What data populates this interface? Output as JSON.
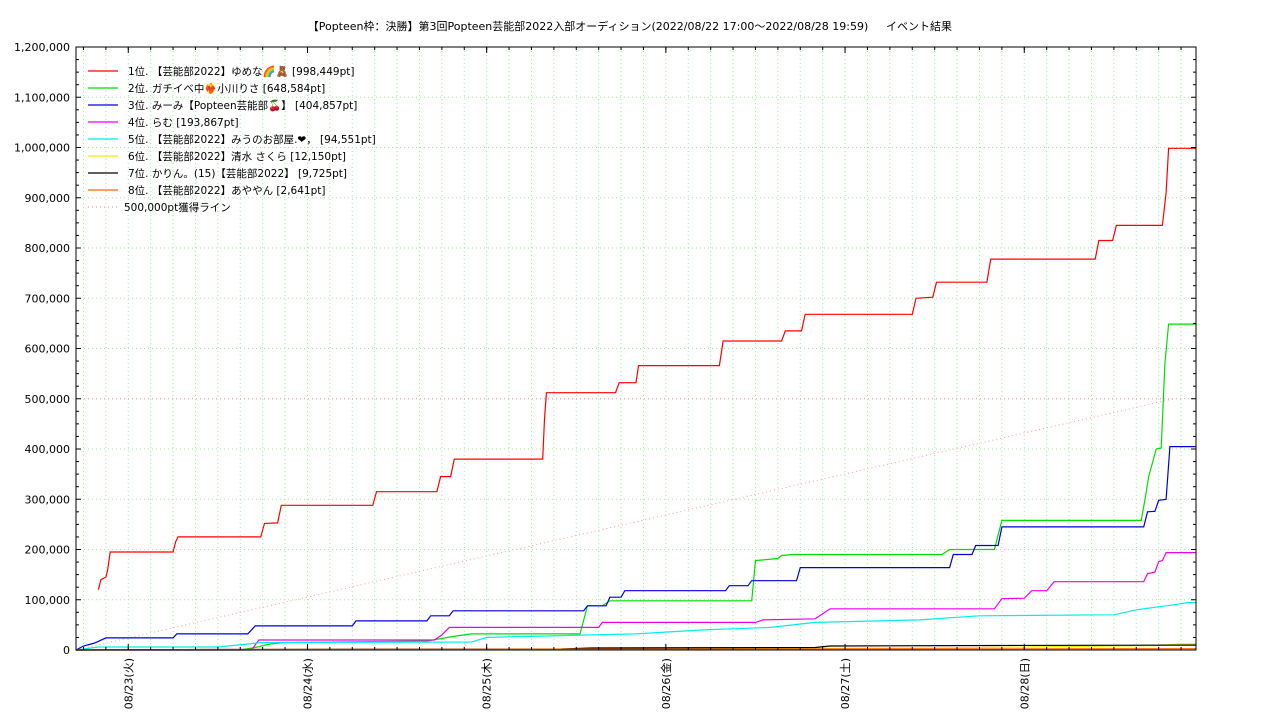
{
  "chart_data": {
    "type": "line",
    "title": "【Popteen枠：決勝】第3回Popteen芸能部2022入部オーディション(2022/08/22 17:00〜2022/08/28 19:59)",
    "subtitle": "イベント結果",
    "xlabel": "",
    "ylabel": "",
    "ylim": [
      0,
      1200000
    ],
    "xlim": [
      "2022/08/22 17:00",
      "2022/08/28 23:00"
    ],
    "y_ticks": [
      "0",
      "100,000",
      "200,000",
      "300,000",
      "400,000",
      "500,000",
      "600,000",
      "700,000",
      "800,000",
      "900,000",
      "1,000,000",
      "1,100,000",
      "1,200,000"
    ],
    "x_ticks": [
      {
        "label": "08/23(火)",
        "t": "2022/08/23 00:00"
      },
      {
        "label": "08/24(水)",
        "t": "2022/08/24 00:00"
      },
      {
        "label": "08/25(木)",
        "t": "2022/08/25 00:00"
      },
      {
        "label": "08/26(金)",
        "t": "2022/08/26 00:00"
      },
      {
        "label": "08/27(土)",
        "t": "2022/08/27 00:00"
      },
      {
        "label": "08/28(日)",
        "t": "2022/08/28 00:00"
      }
    ],
    "grid": true,
    "legend_position": "top-left",
    "series": [
      {
        "name": "1位. 【芸能部2022】ゆめな🌈🧸 [998,449pt]",
        "color": "#ff0000",
        "points": [
          [
            "2022/08/22 20:00",
            120000
          ],
          [
            "2022/08/22 20:20",
            140000
          ],
          [
            "2022/08/22 21:00",
            145000
          ],
          [
            "2022/08/22 21:15",
            160000
          ],
          [
            "2022/08/22 21:35",
            195000
          ],
          [
            "2022/08/23 06:00",
            195000
          ],
          [
            "2022/08/23 06:20",
            215000
          ],
          [
            "2022/08/23 06:40",
            225000
          ],
          [
            "2022/08/23 17:45",
            225000
          ],
          [
            "2022/08/23 18:15",
            252000
          ],
          [
            "2022/08/23 20:00",
            253000
          ],
          [
            "2022/08/23 20:30",
            288000
          ],
          [
            "2022/08/24 08:45",
            288000
          ],
          [
            "2022/08/24 09:15",
            315000
          ],
          [
            "2022/08/24 17:20",
            315000
          ],
          [
            "2022/08/24 17:50",
            345000
          ],
          [
            "2022/08/24 19:10",
            345000
          ],
          [
            "2022/08/24 19:40",
            380000
          ],
          [
            "2022/08/25 07:30",
            380000
          ],
          [
            "2022/08/25 07:45",
            460000
          ],
          [
            "2022/08/25 08:00",
            512000
          ],
          [
            "2022/08/25 17:15",
            512000
          ],
          [
            "2022/08/25 17:45",
            532000
          ],
          [
            "2022/08/25 20:00",
            532000
          ],
          [
            "2022/08/25 20:20",
            566000
          ],
          [
            "2022/08/26 07:10",
            566000
          ],
          [
            "2022/08/26 07:40",
            615000
          ],
          [
            "2022/08/26 15:30",
            615000
          ],
          [
            "2022/08/26 16:00",
            635000
          ],
          [
            "2022/08/26 18:10",
            635000
          ],
          [
            "2022/08/26 18:40",
            668000
          ],
          [
            "2022/08/27 09:00",
            668000
          ],
          [
            "2022/08/27 09:30",
            700000
          ],
          [
            "2022/08/27 11:45",
            702000
          ],
          [
            "2022/08/27 12:15",
            732000
          ],
          [
            "2022/08/27 19:00",
            732000
          ],
          [
            "2022/08/27 19:30",
            778000
          ],
          [
            "2022/08/28 09:30",
            778000
          ],
          [
            "2022/08/28 10:00",
            815000
          ],
          [
            "2022/08/28 11:50",
            815000
          ],
          [
            "2022/08/28 12:20",
            845000
          ],
          [
            "2022/08/28 18:30",
            845000
          ],
          [
            "2022/08/28 19:00",
            910000
          ],
          [
            "2022/08/28 19:20",
            998449
          ],
          [
            "2022/08/28 23:00",
            998449
          ]
        ]
      },
      {
        "name": "2位. ガチイベ中❤️‍🔥小川りさ [648,584pt]",
        "color": "#00dd00",
        "points": [
          [
            "2022/08/22 17:00",
            0
          ],
          [
            "2022/08/23 15:00",
            0
          ],
          [
            "2022/08/23 17:00",
            5000
          ],
          [
            "2022/08/23 19:00",
            12000
          ],
          [
            "2022/08/23 21:00",
            15000
          ],
          [
            "2022/08/24 04:00",
            16000
          ],
          [
            "2022/08/24 16:00",
            18000
          ],
          [
            "2022/08/24 20:00",
            28000
          ],
          [
            "2022/08/24 22:00",
            32000
          ],
          [
            "2022/08/25 12:30",
            32000
          ],
          [
            "2022/08/25 13:30",
            88000
          ],
          [
            "2022/08/25 15:30",
            88000
          ],
          [
            "2022/08/25 16:30",
            98000
          ],
          [
            "2022/08/26 11:30",
            98000
          ],
          [
            "2022/08/26 12:00",
            178000
          ],
          [
            "2022/08/26 15:00",
            182000
          ],
          [
            "2022/08/26 15:30",
            188000
          ],
          [
            "2022/08/26 17:00",
            190000
          ],
          [
            "2022/08/27 13:00",
            190000
          ],
          [
            "2022/08/27 14:00",
            200000
          ],
          [
            "2022/08/27 20:00",
            200000
          ],
          [
            "2022/08/27 21:00",
            258000
          ],
          [
            "2022/08/28 15:40",
            258000
          ],
          [
            "2022/08/28 16:10",
            300000
          ],
          [
            "2022/08/28 16:40",
            345000
          ],
          [
            "2022/08/28 17:40",
            400000
          ],
          [
            "2022/08/28 18:20",
            402000
          ],
          [
            "2022/08/28 18:50",
            570000
          ],
          [
            "2022/08/28 19:20",
            648584
          ],
          [
            "2022/08/28 23:00",
            648584
          ]
        ]
      },
      {
        "name": "3位. みーみ【Popteen芸能部🍒】 [404,857pt]",
        "color": "#0000dd",
        "points": [
          [
            "2022/08/22 17:00",
            0
          ],
          [
            "2022/08/22 18:00",
            8000
          ],
          [
            "2022/08/22 19:30",
            14000
          ],
          [
            "2022/08/22 21:00",
            24000
          ],
          [
            "2022/08/23 06:00",
            24000
          ],
          [
            "2022/08/23 06:30",
            32000
          ],
          [
            "2022/08/23 16:00",
            32000
          ],
          [
            "2022/08/23 16:30",
            40000
          ],
          [
            "2022/08/23 17:00",
            48000
          ],
          [
            "2022/08/24 06:00",
            48000
          ],
          [
            "2022/08/24 06:30",
            58000
          ],
          [
            "2022/08/24 16:00",
            58000
          ],
          [
            "2022/08/24 16:30",
            68000
          ],
          [
            "2022/08/24 19:00",
            68000
          ],
          [
            "2022/08/24 19:30",
            78000
          ],
          [
            "2022/08/25 13:00",
            78000
          ],
          [
            "2022/08/25 13:30",
            88000
          ],
          [
            "2022/08/25 16:00",
            88000
          ],
          [
            "2022/08/25 16:30",
            105000
          ],
          [
            "2022/08/25 18:00",
            105000
          ],
          [
            "2022/08/25 18:30",
            118000
          ],
          [
            "2022/08/26 08:00",
            118000
          ],
          [
            "2022/08/26 08:30",
            128000
          ],
          [
            "2022/08/26 11:00",
            128000
          ],
          [
            "2022/08/26 11:30",
            138000
          ],
          [
            "2022/08/26 17:30",
            138000
          ],
          [
            "2022/08/26 18:00",
            164000
          ],
          [
            "2022/08/27 14:00",
            164000
          ],
          [
            "2022/08/27 14:30",
            190000
          ],
          [
            "2022/08/27 17:00",
            190000
          ],
          [
            "2022/08/27 17:30",
            208000
          ],
          [
            "2022/08/27 20:30",
            208000
          ],
          [
            "2022/08/27 21:00",
            245000
          ],
          [
            "2022/08/28 16:00",
            245000
          ],
          [
            "2022/08/28 16:30",
            275000
          ],
          [
            "2022/08/28 17:30",
            276000
          ],
          [
            "2022/08/28 18:00",
            298000
          ],
          [
            "2022/08/28 19:00",
            300000
          ],
          [
            "2022/08/28 19:30",
            404857
          ],
          [
            "2022/08/28 23:00",
            404857
          ]
        ]
      },
      {
        "name": "4位. らむ [193,867pt]",
        "color": "#ee00ee",
        "points": [
          [
            "2022/08/22 17:00",
            0
          ],
          [
            "2022/08/23 16:30",
            0
          ],
          [
            "2022/08/23 17:00",
            10000
          ],
          [
            "2022/08/23 17:30",
            20000
          ],
          [
            "2022/08/24 17:00",
            20000
          ],
          [
            "2022/08/24 18:00",
            30000
          ],
          [
            "2022/08/24 19:00",
            45000
          ],
          [
            "2022/08/25 15:00",
            45000
          ],
          [
            "2022/08/25 15:30",
            55000
          ],
          [
            "2022/08/26 12:00",
            55000
          ],
          [
            "2022/08/26 13:00",
            60000
          ],
          [
            "2022/08/26 20:00",
            62000
          ],
          [
            "2022/08/26 21:00",
            72000
          ],
          [
            "2022/08/26 22:00",
            82000
          ],
          [
            "2022/08/27 20:00",
            82000
          ],
          [
            "2022/08/27 21:00",
            102000
          ],
          [
            "2022/08/28 00:00",
            103000
          ],
          [
            "2022/08/28 01:00",
            118000
          ],
          [
            "2022/08/28 03:00",
            118000
          ],
          [
            "2022/08/28 04:00",
            136000
          ],
          [
            "2022/08/28 16:00",
            136000
          ],
          [
            "2022/08/28 16:30",
            152000
          ],
          [
            "2022/08/28 17:30",
            155000
          ],
          [
            "2022/08/28 18:00",
            176000
          ],
          [
            "2022/08/28 18:30",
            178000
          ],
          [
            "2022/08/28 19:00",
            193867
          ],
          [
            "2022/08/28 23:00",
            193867
          ]
        ]
      },
      {
        "name": "5位. 【芸能部2022】みうのお部屋.❤︎， [94,551pt]",
        "color": "#00eeee",
        "points": [
          [
            "2022/08/22 17:00",
            0
          ],
          [
            "2022/08/22 20:00",
            6000
          ],
          [
            "2022/08/23 12:00",
            6000
          ],
          [
            "2022/08/23 18:00",
            15000
          ],
          [
            "2022/08/24 22:00",
            16000
          ],
          [
            "2022/08/25 00:00",
            25000
          ],
          [
            "2022/08/25 20:00",
            32000
          ],
          [
            "2022/08/26 05:00",
            40000
          ],
          [
            "2022/08/26 14:00",
            45000
          ],
          [
            "2022/08/26 20:00",
            55000
          ],
          [
            "2022/08/27 10:00",
            60000
          ],
          [
            "2022/08/27 18:00",
            68000
          ],
          [
            "2022/08/28 12:00",
            70000
          ],
          [
            "2022/08/28 15:00",
            80000
          ],
          [
            "2022/08/28 20:00",
            90000
          ],
          [
            "2022/08/28 22:00",
            94551
          ],
          [
            "2022/08/28 23:00",
            94551
          ]
        ]
      },
      {
        "name": "6位. 【芸能部2022】清水 さくら [12,150pt]",
        "color": "#eeee00",
        "points": [
          [
            "2022/08/22 17:00",
            0
          ],
          [
            "2022/08/24 00:00",
            1000
          ],
          [
            "2022/08/26 00:00",
            2500
          ],
          [
            "2022/08/27 12:00",
            4000
          ],
          [
            "2022/08/28 18:00",
            9000
          ],
          [
            "2022/08/28 21:00",
            12150
          ],
          [
            "2022/08/28 23:00",
            12150
          ]
        ]
      },
      {
        "name": "7位. かりん。(15)【芸能部2022】 [9,725pt]",
        "color": "#000000",
        "points": [
          [
            "2022/08/22 17:00",
            0
          ],
          [
            "2022/08/23 10:00",
            1000
          ],
          [
            "2022/08/25 10:00",
            2000
          ],
          [
            "2022/08/25 14:00",
            4000
          ],
          [
            "2022/08/26 20:00",
            5000
          ],
          [
            "2022/08/26 22:00",
            8000
          ],
          [
            "2022/08/27 20:00",
            9000
          ],
          [
            "2022/08/28 23:00",
            9725
          ]
        ]
      },
      {
        "name": "8位. 【芸能部2022】あややん [2,641pt]",
        "color": "#ff6600",
        "points": [
          [
            "2022/08/22 17:00",
            0
          ],
          [
            "2022/08/23 12:00",
            1000
          ],
          [
            "2022/08/25 12:00",
            1800
          ],
          [
            "2022/08/28 23:00",
            2641
          ]
        ]
      }
    ],
    "reference_line": {
      "name": "500,000pt獲得ライン",
      "color": "#ff9999",
      "points": [
        [
          "2022/08/22 17:00",
          0
        ],
        [
          "2022/08/28 19:59",
          500000
        ]
      ]
    }
  }
}
